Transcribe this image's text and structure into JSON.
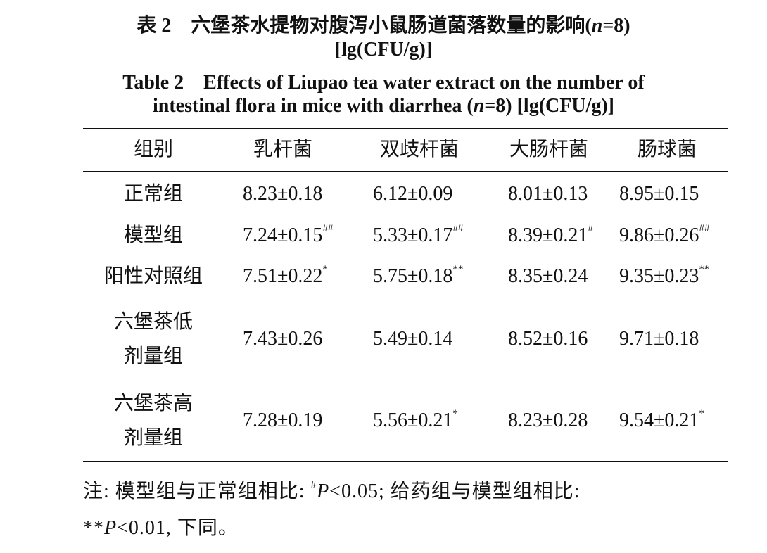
{
  "title_cn": [
    "表 2　六堡茶水提物对腹泻小鼠肠道菌落数量的影响(",
    "n",
    "=8)",
    "[lg(CFU/g)]"
  ],
  "title_en": [
    "Table 2　Effects of Liupao tea water extract on the number of",
    "intestinal flora in mice with diarrhea (",
    "n",
    "=8) [lg(CFU/g)]"
  ],
  "table": {
    "header": [
      "组别",
      "乳杆菌",
      "双歧杆菌",
      "大肠杆菌",
      "肠球菌"
    ],
    "rows": [
      {
        "group": [
          "正常组"
        ],
        "cells": [
          {
            "value": "8.23±0.18"
          },
          {
            "value": "6.12±0.09"
          },
          {
            "value": "8.01±0.13"
          },
          {
            "value": "8.95±0.15"
          }
        ]
      },
      {
        "group": [
          "模型组"
        ],
        "cells": [
          {
            "value": "7.24±0.15",
            "mark": "##"
          },
          {
            "value": "5.33±0.17",
            "mark": "##"
          },
          {
            "value": "8.39±0.21",
            "mark": "#"
          },
          {
            "value": "9.86±0.26",
            "mark": "##"
          }
        ]
      },
      {
        "group": [
          "阳性对照组"
        ],
        "cells": [
          {
            "value": "7.51±0.22",
            "mark": "*"
          },
          {
            "value": "5.75±0.18",
            "mark": "**"
          },
          {
            "value": "8.35±0.24"
          },
          {
            "value": "9.35±0.23",
            "mark": "**"
          }
        ]
      },
      {
        "group": [
          "六堡茶低",
          "剂量组"
        ],
        "cells": [
          {
            "value": "7.43±0.26"
          },
          {
            "value": "5.49±0.14"
          },
          {
            "value": "8.52±0.16"
          },
          {
            "value": "9.71±0.18"
          }
        ]
      },
      {
        "group": [
          "六堡茶高",
          "剂量组"
        ],
        "cells": [
          {
            "value": "7.28±0.19"
          },
          {
            "value": "5.56±0.21",
            "mark": "*"
          },
          {
            "value": "8.23±0.28"
          },
          {
            "value": "9.54±0.21",
            "mark": "*"
          }
        ]
      }
    ]
  },
  "note": [
    "注: 模型组与正常组相比: ",
    "#",
    "P",
    "<0.05; 给药组与模型组相比: ",
    "**",
    "P",
    "<0.01, 下同。"
  ]
}
